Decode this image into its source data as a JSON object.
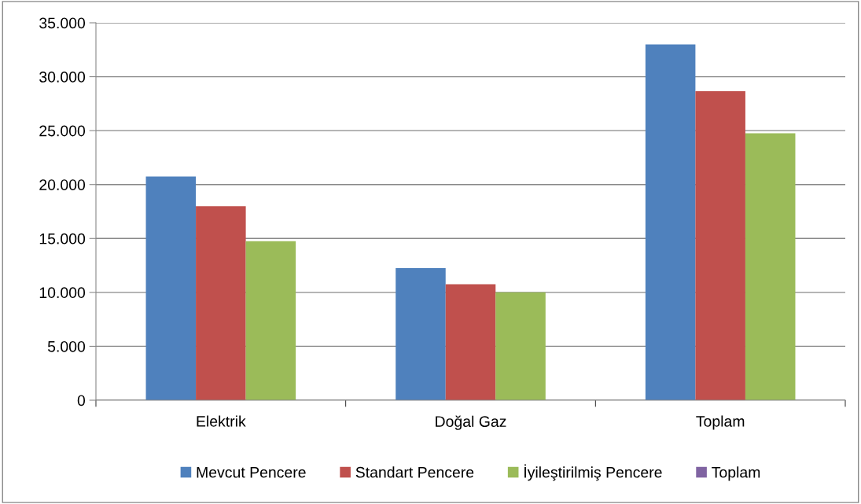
{
  "chart_data": {
    "type": "bar",
    "categories": [
      "Elektrik",
      "Doğal Gaz",
      "Toplam"
    ],
    "series": [
      {
        "name": "Mevcut Pencere",
        "color": "#4f81bd",
        "values": [
          20750,
          12250,
          33000
        ]
      },
      {
        "name": "Standart Pencere",
        "color": "#c0504d",
        "values": [
          18000,
          10750,
          28650
        ]
      },
      {
        "name": "İyileştirilmiş Pencere",
        "color": "#9bbb59",
        "values": [
          14750,
          10000,
          24750
        ]
      },
      {
        "name": "Toplam",
        "color": "#8064a2",
        "values": [
          null,
          null,
          null
        ]
      }
    ],
    "ylim": [
      0,
      35000
    ],
    "yticks": [
      0,
      {
        "value": 5000,
        "label": "5.000"
      },
      {
        "value": 10000,
        "label": "10.000"
      },
      {
        "value": 15000,
        "label": "15.000"
      },
      {
        "value": 20000,
        "label": "20.000"
      },
      {
        "value": 25000,
        "label": "25.000"
      },
      {
        "value": 30000,
        "label": "30.000"
      },
      {
        "value": 35000,
        "label": "35.000"
      }
    ],
    "grid": "y",
    "legend": "bottom"
  }
}
